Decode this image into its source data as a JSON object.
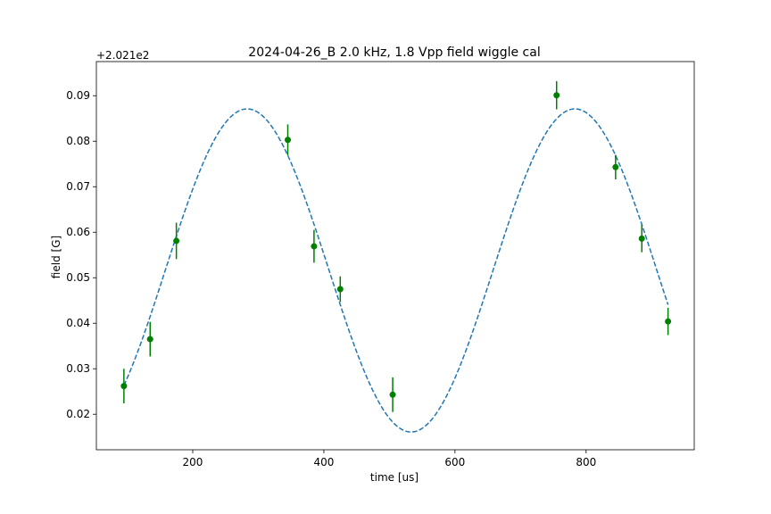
{
  "chart_data": {
    "type": "scatter",
    "title": "2024-04-26_B 2.0 kHz, 1.8 Vpp field wiggle cal",
    "xlabel": "time [us]",
    "ylabel": "field [G]",
    "y_offset_label": "+2.021e2",
    "xlim": [
      53,
      965
    ],
    "ylim": [
      0.0122,
      0.0975
    ],
    "xticks": [
      200,
      400,
      600,
      800
    ],
    "xtick_labels": [
      "200",
      "400",
      "600",
      "800"
    ],
    "yticks": [
      0.02,
      0.03,
      0.04,
      0.05,
      0.06,
      0.07,
      0.08,
      0.09
    ],
    "ytick_labels": [
      "0.02",
      "0.03",
      "0.04",
      "0.05",
      "0.06",
      "0.07",
      "0.08",
      "0.09"
    ],
    "grid": false,
    "series": [
      {
        "kind": "errorbar",
        "color": "#008000",
        "x": [
          95,
          135,
          175,
          345,
          385,
          425,
          505,
          755,
          845,
          885,
          925
        ],
        "y": [
          0.0262,
          0.0365,
          0.0581,
          0.0803,
          0.0569,
          0.0475,
          0.0243,
          0.0901,
          0.0743,
          0.0586,
          0.0404
        ],
        "yerr": [
          0.0038,
          0.0038,
          0.004,
          0.0034,
          0.0036,
          0.0028,
          0.0038,
          0.0031,
          0.0027,
          0.003,
          0.003
        ]
      },
      {
        "kind": "fit-line",
        "color": "#1f77b4",
        "linestyle": "dashed",
        "function": "sine",
        "x_range": [
          95,
          925
        ],
        "offset": 0.0516,
        "amplitude": 0.0355,
        "period_us": 500,
        "peak_at_us": 283
      }
    ]
  }
}
